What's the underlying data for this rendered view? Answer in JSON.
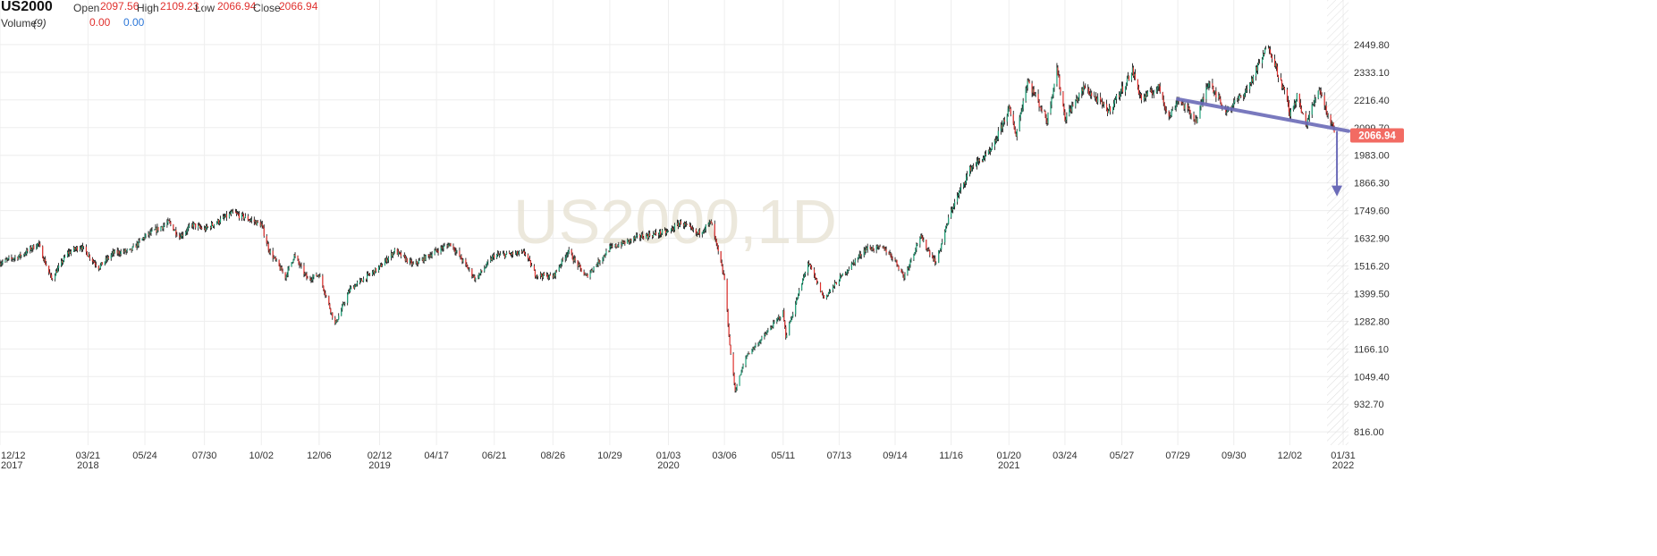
{
  "header": {
    "symbol": "US2000",
    "open_label": "Open",
    "open_value": "2097.56",
    "high_label": "High",
    "high_value": "2109.23",
    "low_label": "Low",
    "low_value": "2066.94",
    "close_label": "Close",
    "close_value": "2066.94",
    "volume_label": "Volume",
    "volume_period": "(9)",
    "volume_value_1": "0.00",
    "volume_value_2": "0.00"
  },
  "colors": {
    "up": "#1fa37a",
    "down": "#e0312e",
    "wick": "#000000",
    "trendline": "#6b6bb8",
    "price_tag": "#f26b63",
    "grid": "#eeeeee"
  },
  "chart_data": {
    "type": "candlestick",
    "watermark": "US2000,1D",
    "y_ticks": [
      816.0,
      932.7,
      1049.4,
      1166.1,
      1282.8,
      1399.5,
      1516.2,
      1632.9,
      1749.6,
      1866.3,
      1983.0,
      2099.7,
      2216.4,
      2333.1,
      2449.8
    ],
    "y_tick_labels": [
      "816.00",
      "932.70",
      "1049.40",
      "1166.10",
      "1282.80",
      "1399.50",
      "1516.20",
      "1632.90",
      "1749.60",
      "1866.30",
      "1983.00",
      "2099.70",
      "2216.40",
      "2333.10",
      "2449.80"
    ],
    "ylim": [
      760,
      2540
    ],
    "x_range": [
      "2017-12-12",
      "2022-02-06"
    ],
    "x_ticks": [
      {
        "date": "2017-12-12",
        "label": "12/12",
        "year": "2017"
      },
      {
        "date": "2018-03-21",
        "label": "03/21",
        "year": "2018"
      },
      {
        "date": "2018-05-24",
        "label": "05/24",
        "year": ""
      },
      {
        "date": "2018-07-30",
        "label": "07/30",
        "year": ""
      },
      {
        "date": "2018-10-02",
        "label": "10/02",
        "year": ""
      },
      {
        "date": "2018-12-06",
        "label": "12/06",
        "year": ""
      },
      {
        "date": "2019-02-12",
        "label": "02/12",
        "year": "2019"
      },
      {
        "date": "2019-04-17",
        "label": "04/17",
        "year": ""
      },
      {
        "date": "2019-06-21",
        "label": "06/21",
        "year": ""
      },
      {
        "date": "2019-08-26",
        "label": "08/26",
        "year": ""
      },
      {
        "date": "2019-10-29",
        "label": "10/29",
        "year": ""
      },
      {
        "date": "2020-01-03",
        "label": "01/03",
        "year": "2020"
      },
      {
        "date": "2020-03-06",
        "label": "03/06",
        "year": ""
      },
      {
        "date": "2020-05-11",
        "label": "05/11",
        "year": ""
      },
      {
        "date": "2020-07-13",
        "label": "07/13",
        "year": ""
      },
      {
        "date": "2020-09-14",
        "label": "09/14",
        "year": ""
      },
      {
        "date": "2020-11-16",
        "label": "11/16",
        "year": ""
      },
      {
        "date": "2021-01-20",
        "label": "01/20",
        "year": "2021"
      },
      {
        "date": "2021-03-24",
        "label": "03/24",
        "year": ""
      },
      {
        "date": "2021-05-27",
        "label": "05/27",
        "year": ""
      },
      {
        "date": "2021-07-29",
        "label": "07/29",
        "year": ""
      },
      {
        "date": "2021-09-30",
        "label": "09/30",
        "year": ""
      },
      {
        "date": "2021-12-02",
        "label": "12/02",
        "year": ""
      },
      {
        "date": "2022-01-31",
        "label": "01/31",
        "year": "2022"
      }
    ],
    "last_price": 2066.94,
    "last_price_label": "2066.94",
    "price_path": [
      [
        "2017-12-12",
        1530
      ],
      [
        "2018-01-05",
        1560
      ],
      [
        "2018-01-24",
        1610
      ],
      [
        "2018-02-08",
        1460
      ],
      [
        "2018-02-26",
        1570
      ],
      [
        "2018-03-13",
        1600
      ],
      [
        "2018-04-02",
        1510
      ],
      [
        "2018-04-18",
        1570
      ],
      [
        "2018-05-08",
        1580
      ],
      [
        "2018-05-24",
        1640
      ],
      [
        "2018-06-20",
        1700
      ],
      [
        "2018-07-02",
        1640
      ],
      [
        "2018-07-17",
        1690
      ],
      [
        "2018-07-30",
        1670
      ],
      [
        "2018-08-31",
        1740
      ],
      [
        "2018-09-20",
        1710
      ],
      [
        "2018-10-02",
        1690
      ],
      [
        "2018-10-11",
        1580
      ],
      [
        "2018-10-29",
        1470
      ],
      [
        "2018-11-08",
        1560
      ],
      [
        "2018-11-23",
        1460
      ],
      [
        "2018-12-06",
        1480
      ],
      [
        "2018-12-24",
        1270
      ],
      [
        "2019-01-10",
        1420
      ],
      [
        "2019-02-12",
        1510
      ],
      [
        "2019-03-01",
        1580
      ],
      [
        "2019-03-22",
        1520
      ],
      [
        "2019-04-17",
        1580
      ],
      [
        "2019-05-03",
        1610
      ],
      [
        "2019-05-31",
        1460
      ],
      [
        "2019-06-21",
        1560
      ],
      [
        "2019-07-26",
        1570
      ],
      [
        "2019-08-06",
        1480
      ],
      [
        "2019-08-26",
        1470
      ],
      [
        "2019-09-12",
        1580
      ],
      [
        "2019-10-02",
        1470
      ],
      [
        "2019-10-29",
        1590
      ],
      [
        "2019-12-02",
        1640
      ],
      [
        "2020-01-03",
        1660
      ],
      [
        "2020-01-17",
        1700
      ],
      [
        "2020-02-04",
        1650
      ],
      [
        "2020-02-20",
        1700
      ],
      [
        "2020-03-06",
        1460
      ],
      [
        "2020-03-12",
        1180
      ],
      [
        "2020-03-18",
        990
      ],
      [
        "2020-03-31",
        1140
      ],
      [
        "2020-04-15",
        1200
      ],
      [
        "2020-05-11",
        1320
      ],
      [
        "2020-05-14",
        1220
      ],
      [
        "2020-06-08",
        1530
      ],
      [
        "2020-06-26",
        1380
      ],
      [
        "2020-07-13",
        1460
      ],
      [
        "2020-08-12",
        1590
      ],
      [
        "2020-09-02",
        1590
      ],
      [
        "2020-09-14",
        1540
      ],
      [
        "2020-09-24",
        1470
      ],
      [
        "2020-10-12",
        1640
      ],
      [
        "2020-10-30",
        1530
      ],
      [
        "2020-11-16",
        1750
      ],
      [
        "2020-12-08",
        1930
      ],
      [
        "2020-12-31",
        2000
      ],
      [
        "2021-01-20",
        2180
      ],
      [
        "2021-01-28",
        2070
      ],
      [
        "2021-02-10",
        2300
      ],
      [
        "2021-03-04",
        2130
      ],
      [
        "2021-03-15",
        2350
      ],
      [
        "2021-03-24",
        2140
      ],
      [
        "2021-04-15",
        2270
      ],
      [
        "2021-05-12",
        2170
      ],
      [
        "2021-05-27",
        2260
      ],
      [
        "2021-06-08",
        2340
      ],
      [
        "2021-06-18",
        2220
      ],
      [
        "2021-07-08",
        2270
      ],
      [
        "2021-07-19",
        2140
      ],
      [
        "2021-07-29",
        2220
      ],
      [
        "2021-08-19",
        2130
      ],
      [
        "2021-09-02",
        2300
      ],
      [
        "2021-09-20",
        2170
      ],
      [
        "2021-09-30",
        2200
      ],
      [
        "2021-10-15",
        2260
      ],
      [
        "2021-11-08",
        2450
      ],
      [
        "2021-11-30",
        2200
      ],
      [
        "2021-12-02",
        2150
      ],
      [
        "2021-12-10",
        2230
      ],
      [
        "2021-12-20",
        2110
      ],
      [
        "2022-01-04",
        2270
      ],
      [
        "2022-01-14",
        2150
      ],
      [
        "2022-01-24",
        2067
      ]
    ],
    "trendline": [
      [
        "2021-07-29",
        2220
      ],
      [
        "2022-02-06",
        2085
      ]
    ],
    "arrow": {
      "date": "2022-01-24",
      "from": 2085,
      "to": 1810
    }
  }
}
